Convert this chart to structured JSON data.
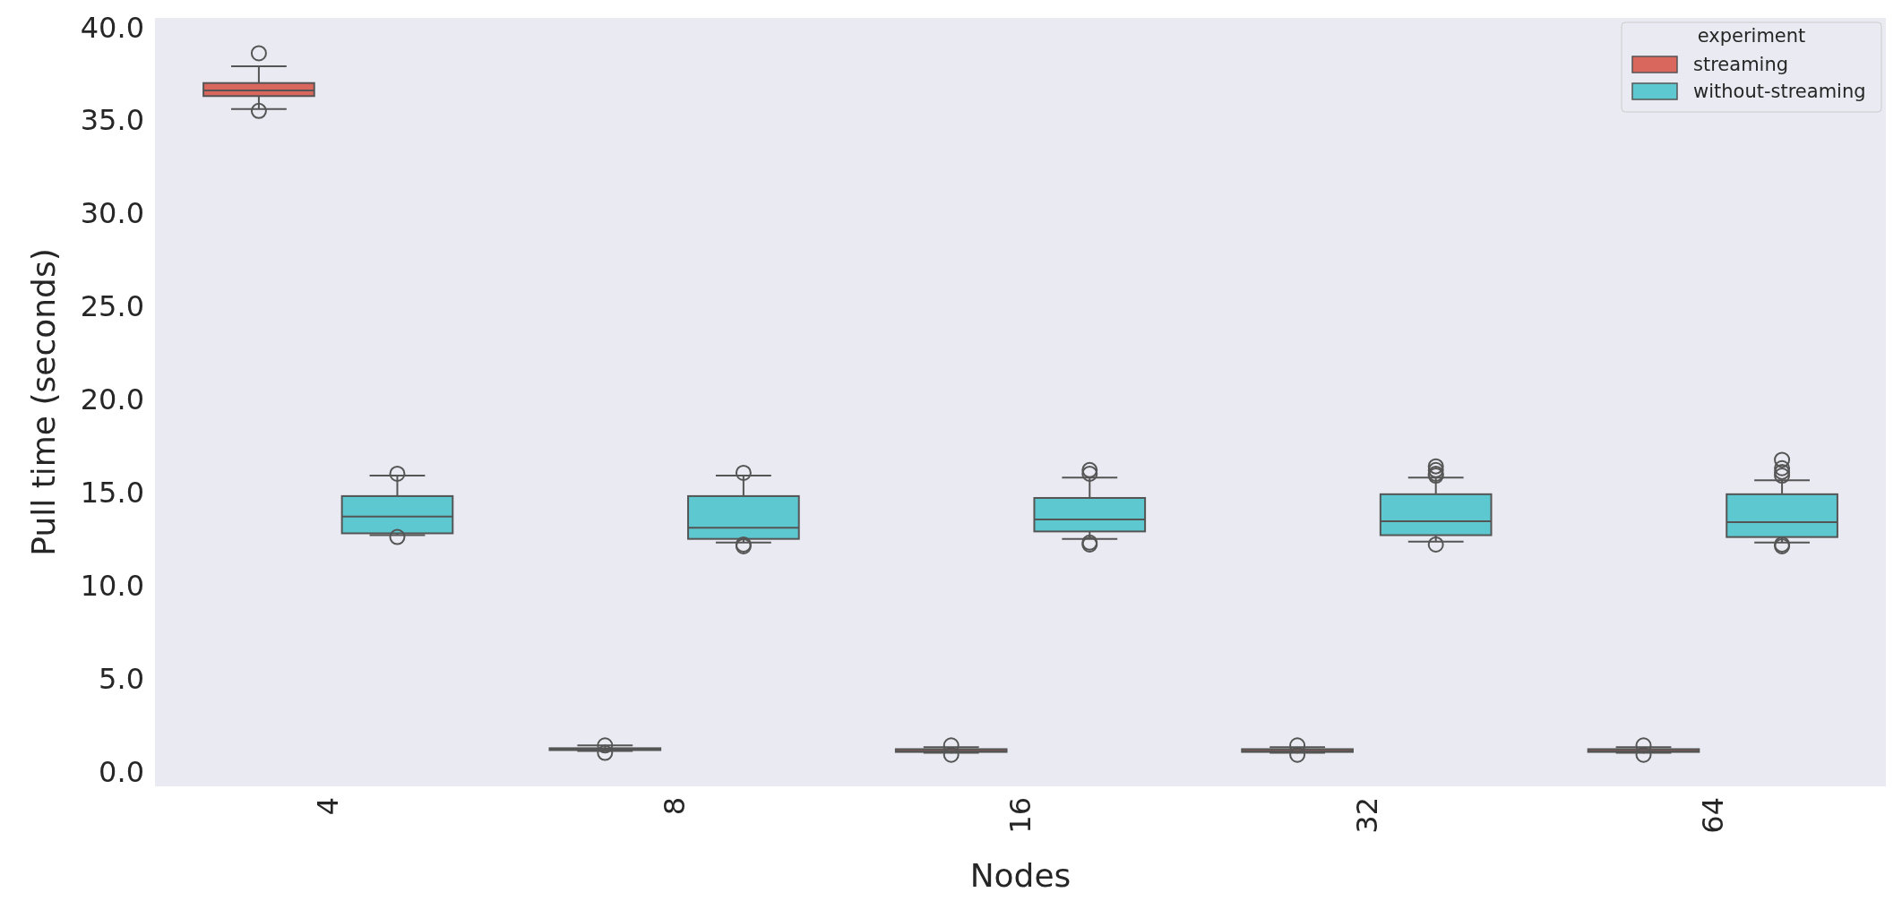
{
  "chart_data": {
    "type": "box",
    "xlabel": "Nodes",
    "ylabel": "Pull time (seconds)",
    "legend_title": "experiment",
    "categories": [
      "4",
      "8",
      "16",
      "32",
      "64"
    ],
    "ylim": [
      -0.8,
      40.5
    ],
    "yticks": [
      {
        "value": 0,
        "label": "0.0"
      },
      {
        "value": 5,
        "label": "5.0"
      },
      {
        "value": 10,
        "label": "10.0"
      },
      {
        "value": 15,
        "label": "15.0"
      },
      {
        "value": 20,
        "label": "20.0"
      },
      {
        "value": 25,
        "label": "25.0"
      },
      {
        "value": 30,
        "label": "30.0"
      },
      {
        "value": 35,
        "label": "35.0"
      },
      {
        "value": 40,
        "label": "40.0"
      }
    ],
    "grid": false,
    "legend": "top right",
    "series": [
      {
        "name": "streaming",
        "color": "#d9675d",
        "boxes": [
          {
            "low": 35.6,
            "q1": 36.3,
            "median": 36.6,
            "q3": 37.0,
            "high": 37.9,
            "outliers": [
              38.6,
              35.5
            ]
          },
          {
            "low": 1.1,
            "q1": 1.15,
            "median": 1.2,
            "q3": 1.25,
            "high": 1.4,
            "outliers": [
              1.0,
              1.4
            ]
          },
          {
            "low": 1.0,
            "q1": 1.05,
            "median": 1.1,
            "q3": 1.2,
            "high": 1.3,
            "outliers": [
              0.9,
              1.4
            ]
          },
          {
            "low": 1.0,
            "q1": 1.05,
            "median": 1.1,
            "q3": 1.2,
            "high": 1.3,
            "outliers": [
              0.9,
              1.4
            ]
          },
          {
            "low": 1.0,
            "q1": 1.05,
            "median": 1.1,
            "q3": 1.2,
            "high": 1.3,
            "outliers": [
              0.9,
              1.4
            ]
          }
        ]
      },
      {
        "name": "without-streaming",
        "color": "#5ec8d0",
        "boxes": [
          {
            "low": 12.7,
            "q1": 12.8,
            "median": 13.7,
            "q3": 14.8,
            "high": 15.9,
            "outliers": [
              16.0,
              12.6
            ]
          },
          {
            "low": 12.3,
            "q1": 12.5,
            "median": 13.1,
            "q3": 14.8,
            "high": 15.9,
            "outliers": [
              16.05,
              12.1,
              12.2
            ]
          },
          {
            "low": 12.5,
            "q1": 12.9,
            "median": 13.55,
            "q3": 14.7,
            "high": 15.8,
            "outliers": [
              16.2,
              16.0,
              12.3,
              12.2
            ]
          },
          {
            "low": 12.35,
            "q1": 12.7,
            "median": 13.45,
            "q3": 14.9,
            "high": 15.8,
            "outliers": [
              16.4,
              16.2,
              16.0,
              15.9,
              12.2
            ]
          },
          {
            "low": 12.3,
            "q1": 12.6,
            "median": 13.4,
            "q3": 14.9,
            "high": 15.65,
            "outliers": [
              16.75,
              16.3,
              16.1,
              15.9,
              12.1,
              12.2
            ]
          }
        ]
      }
    ]
  }
}
